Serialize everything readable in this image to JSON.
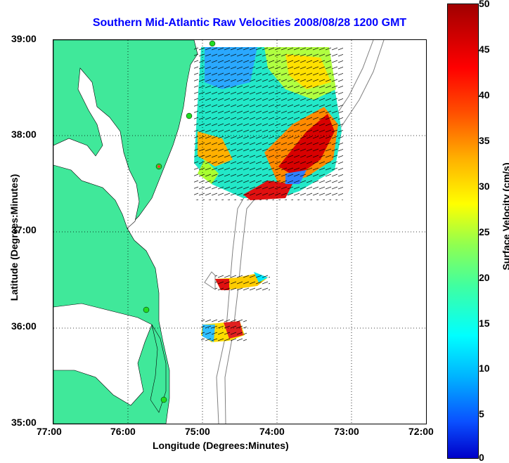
{
  "title": "Southern Mid-Atlantic Raw Velocities 2008/08/28 1200 GMT",
  "x_axis": {
    "label": "Longitude (Degrees:Minutes)",
    "ticks": [
      "77:00",
      "76:00",
      "75:00",
      "74:00",
      "73:00",
      "72:00"
    ]
  },
  "y_axis": {
    "label": "Latitude (Degrees:Minutes)",
    "ticks": [
      "39:00",
      "38:00",
      "37:00",
      "36:00",
      "35:00"
    ]
  },
  "colorbar": {
    "label": "Surface Velocity (cm/s)",
    "ticks": [
      "50",
      "45",
      "40",
      "35",
      "30",
      "25",
      "20",
      "15",
      "10",
      "5",
      "0"
    ]
  },
  "colors": {
    "land": "#40e89a",
    "water": "#ffffff",
    "title": "#0000ff",
    "grid": "#000000",
    "station_marker": "#22dd22",
    "station_marker_red": "#ff3333"
  },
  "map_view": {
    "lon_range": [
      -77,
      -72
    ],
    "lat_range": [
      35,
      39
    ],
    "grid": "dotted"
  }
}
